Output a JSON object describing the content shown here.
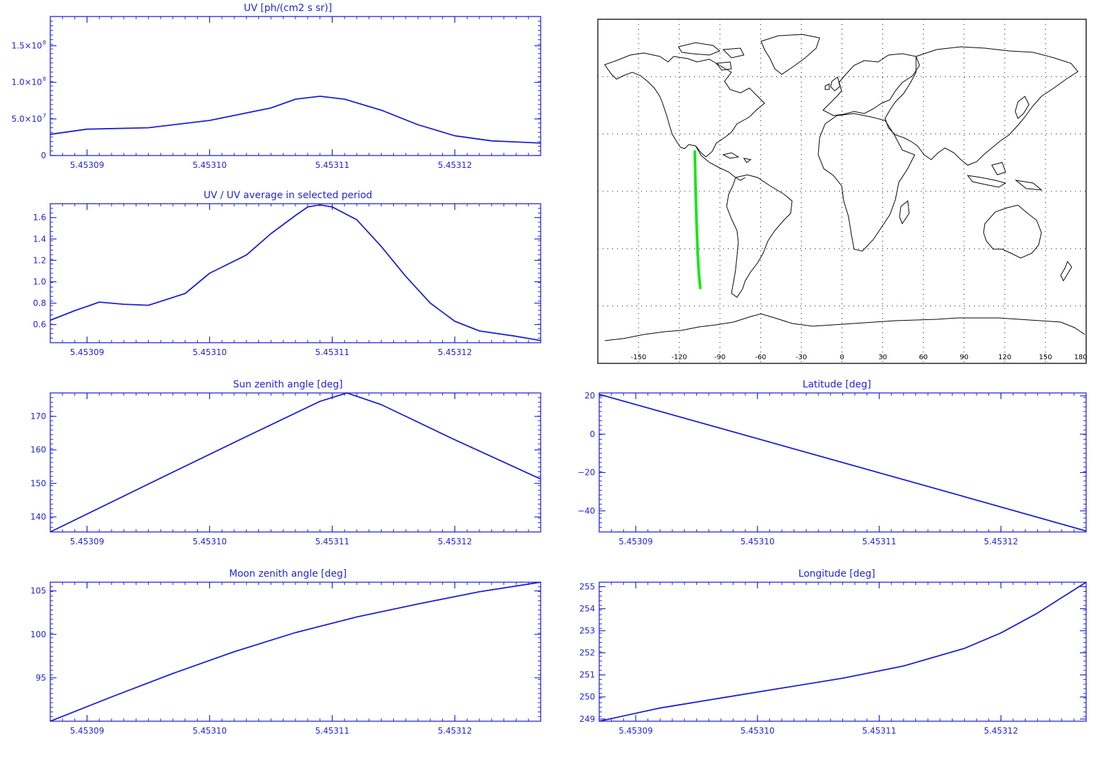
{
  "colors": {
    "axis": "#2222dd",
    "series": "#1a1ad8",
    "track": "#19e619",
    "map": "#000000"
  },
  "charts": {
    "uv": {
      "title": "UV [ph/(cm2 s sr)]"
    },
    "ratio": {
      "title": "UV / UV average in selected period"
    },
    "sun": {
      "title": "Sun zenith angle [deg]"
    },
    "moon": {
      "title": "Moon zenith angle [deg]"
    },
    "lat": {
      "title": "Latitude [deg]"
    },
    "lon": {
      "title": "Longitude [deg]"
    }
  },
  "map": {
    "lon_ticks": [
      "-150",
      "-120",
      "-90",
      "-60",
      "-30",
      "0",
      "30",
      "60",
      "90",
      "120",
      "150",
      "180"
    ],
    "grid": "dotted"
  },
  "chart_data": [
    {
      "id": "uv",
      "type": "line",
      "title": "UV [ph/(cm2 s sr)]",
      "xlim": [
        5.453087,
        5.453127
      ],
      "ylim": [
        0,
        190000000
      ],
      "x_ticks": [
        "5.45309",
        "5.45310",
        "5.45311",
        "5.45312"
      ],
      "y_ticks": [
        {
          "v": 0,
          "label": "0"
        },
        {
          "v": 50000000,
          "label": "5.0×10",
          "exp": "7"
        },
        {
          "v": 100000000,
          "label": "1.0×10",
          "exp": "8"
        },
        {
          "v": 150000000,
          "label": "1.5×10",
          "exp": "8"
        }
      ],
      "series": [
        {
          "x": [
            5.453087,
            5.45309,
            5.453095,
            5.4531,
            5.453105,
            5.453107,
            5.453109,
            5.453111,
            5.453114,
            5.453117,
            5.45312,
            5.453123,
            5.453127
          ],
          "y": [
            29000000,
            36000000,
            38000000,
            48000000,
            65000000,
            77000000,
            81000000,
            77000000,
            62000000,
            42000000,
            27000000,
            20000000,
            17000000
          ]
        }
      ]
    },
    {
      "id": "ratio",
      "type": "line",
      "title": "UV / UV average in selected period",
      "xlim": [
        5.453087,
        5.453127
      ],
      "ylim": [
        0.43,
        1.73
      ],
      "x_ticks": [
        "5.45309",
        "5.45310",
        "5.45311",
        "5.45312"
      ],
      "y_ticks": [
        {
          "v": 0.6,
          "label": "0.6"
        },
        {
          "v": 0.8,
          "label": "0.8"
        },
        {
          "v": 1.0,
          "label": "1.0"
        },
        {
          "v": 1.2,
          "label": "1.2"
        },
        {
          "v": 1.4,
          "label": "1.4"
        },
        {
          "v": 1.6,
          "label": "1.6"
        }
      ],
      "series": [
        {
          "x": [
            5.453087,
            5.453089,
            5.453091,
            5.453093,
            5.453095,
            5.453098,
            5.4531,
            5.453103,
            5.453105,
            5.453107,
            5.453108,
            5.453109,
            5.45311,
            5.453112,
            5.453114,
            5.453116,
            5.453118,
            5.45312,
            5.453122,
            5.453125,
            5.453127
          ],
          "y": [
            0.64,
            0.73,
            0.81,
            0.79,
            0.78,
            0.89,
            1.08,
            1.25,
            1.45,
            1.62,
            1.7,
            1.72,
            1.7,
            1.58,
            1.33,
            1.05,
            0.8,
            0.63,
            0.54,
            0.49,
            0.45
          ]
        }
      ]
    },
    {
      "id": "sun",
      "type": "line",
      "title": "Sun zenith angle [deg]",
      "xlim": [
        5.453087,
        5.453127
      ],
      "ylim": [
        135.5,
        177
      ],
      "x_ticks": [
        "5.45309",
        "5.45310",
        "5.45311",
        "5.45312"
      ],
      "y_ticks": [
        {
          "v": 140,
          "label": "140"
        },
        {
          "v": 150,
          "label": "150"
        },
        {
          "v": 160,
          "label": "160"
        },
        {
          "v": 170,
          "label": "170"
        }
      ],
      "series": [
        {
          "x": [
            5.453087,
            5.453095,
            5.453103,
            5.453109,
            5.4531112,
            5.453114,
            5.45312,
            5.453127
          ],
          "y": [
            135.5,
            149.8,
            164.0,
            174.5,
            177.0,
            173.5,
            163.0,
            151.3
          ]
        }
      ]
    },
    {
      "id": "moon",
      "type": "line",
      "title": "Moon zenith angle [deg]",
      "xlim": [
        5.453087,
        5.453127
      ],
      "ylim": [
        90,
        106
      ],
      "x_ticks": [
        "5.45309",
        "5.45310",
        "5.45311",
        "5.45312"
      ],
      "y_ticks": [
        {
          "v": 95,
          "label": "95"
        },
        {
          "v": 100,
          "label": "100"
        },
        {
          "v": 105,
          "label": "105"
        }
      ],
      "series": [
        {
          "x": [
            5.453087,
            5.453092,
            5.453097,
            5.453102,
            5.453107,
            5.453112,
            5.453117,
            5.453122,
            5.453127
          ],
          "y": [
            90.0,
            92.8,
            95.5,
            98.0,
            100.2,
            102.0,
            103.5,
            104.9,
            106.0
          ]
        }
      ]
    },
    {
      "id": "lat",
      "type": "line",
      "title": "Latitude [deg]",
      "xlim": [
        5.453087,
        5.453127
      ],
      "ylim": [
        -51,
        21.5
      ],
      "x_ticks": [
        "5.45309",
        "5.45310",
        "5.45311",
        "5.45312"
      ],
      "y_ticks": [
        {
          "v": -40,
          "label": "−40"
        },
        {
          "v": -20,
          "label": "−20"
        },
        {
          "v": 0,
          "label": "0"
        },
        {
          "v": 20,
          "label": "20"
        }
      ],
      "series": [
        {
          "x": [
            5.453087,
            5.453097,
            5.453107,
            5.453117,
            5.453127
          ],
          "y": [
            20.8,
            3.0,
            -14.8,
            -32.6,
            -50.5
          ]
        }
      ]
    },
    {
      "id": "lon",
      "type": "line",
      "title": "Longitude [deg]",
      "xlim": [
        5.453087,
        5.453127
      ],
      "ylim": [
        248.9,
        255.2
      ],
      "x_ticks": [
        "5.45309",
        "5.45310",
        "5.45311",
        "5.45312"
      ],
      "y_ticks": [
        {
          "v": 249,
          "label": "249"
        },
        {
          "v": 250,
          "label": "250"
        },
        {
          "v": 251,
          "label": "251"
        },
        {
          "v": 252,
          "label": "252"
        },
        {
          "v": 253,
          "label": "253"
        },
        {
          "v": 254,
          "label": "254"
        },
        {
          "v": 255,
          "label": "255"
        }
      ],
      "series": [
        {
          "x": [
            5.453087,
            5.453092,
            5.453097,
            5.453102,
            5.453107,
            5.453112,
            5.453117,
            5.45312,
            5.453123,
            5.453125,
            5.453127
          ],
          "y": [
            248.9,
            249.5,
            249.95,
            250.4,
            250.85,
            251.4,
            252.2,
            252.9,
            253.8,
            254.5,
            255.2
          ]
        }
      ]
    },
    {
      "id": "map",
      "type": "scatter",
      "title": "",
      "xlabel": "",
      "ylabel": "",
      "xlim": [
        -180,
        180
      ],
      "ylim": [
        -90,
        90
      ],
      "series": [
        {
          "x": [
            -108.5,
            -108,
            -107.3,
            -106.4,
            -105.4,
            -104.5
          ],
          "y": [
            20.8,
            3,
            -14.8,
            -32.6,
            -44,
            -50.5
          ]
        }
      ]
    }
  ]
}
